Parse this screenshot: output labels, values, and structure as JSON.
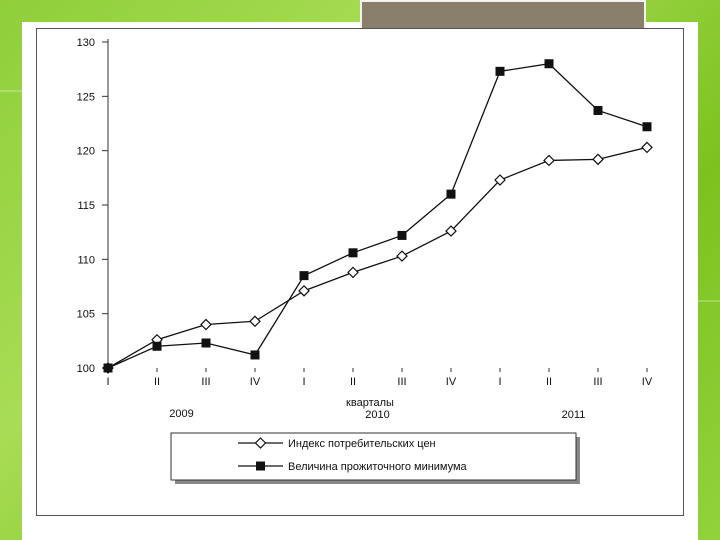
{
  "theme": {
    "background": "#8fcf3a",
    "panel": "#ffffff",
    "tab": "#8a7f6a",
    "ink": "#111111"
  },
  "chart_data": {
    "type": "line",
    "title": "",
    "xlabel": "кварталы",
    "ylabel": "",
    "categories": [
      "I",
      "II",
      "III",
      "IV",
      "I",
      "II",
      "III",
      "IV",
      "I",
      "II",
      "III",
      "IV"
    ],
    "year_labels": [
      "2009",
      "2010",
      "2011"
    ],
    "ylim": [
      100,
      130
    ],
    "yticks": [
      100,
      105,
      110,
      115,
      120,
      125,
      130
    ],
    "grid": false,
    "legend_position": "bottom-center",
    "series": [
      {
        "name": "Индекс потребительских цен",
        "marker": "open-diamond",
        "color": "#111111",
        "values": [
          100.0,
          102.6,
          104.0,
          104.3,
          107.1,
          108.8,
          110.3,
          112.6,
          117.3,
          119.1,
          119.2,
          120.3
        ]
      },
      {
        "name": "Величина прожиточного минимума",
        "marker": "filled-square",
        "color": "#111111",
        "values": [
          100.0,
          102.0,
          102.3,
          101.2,
          108.5,
          110.6,
          112.2,
          116.0,
          127.3,
          128.0,
          123.7,
          122.2
        ]
      }
    ]
  }
}
